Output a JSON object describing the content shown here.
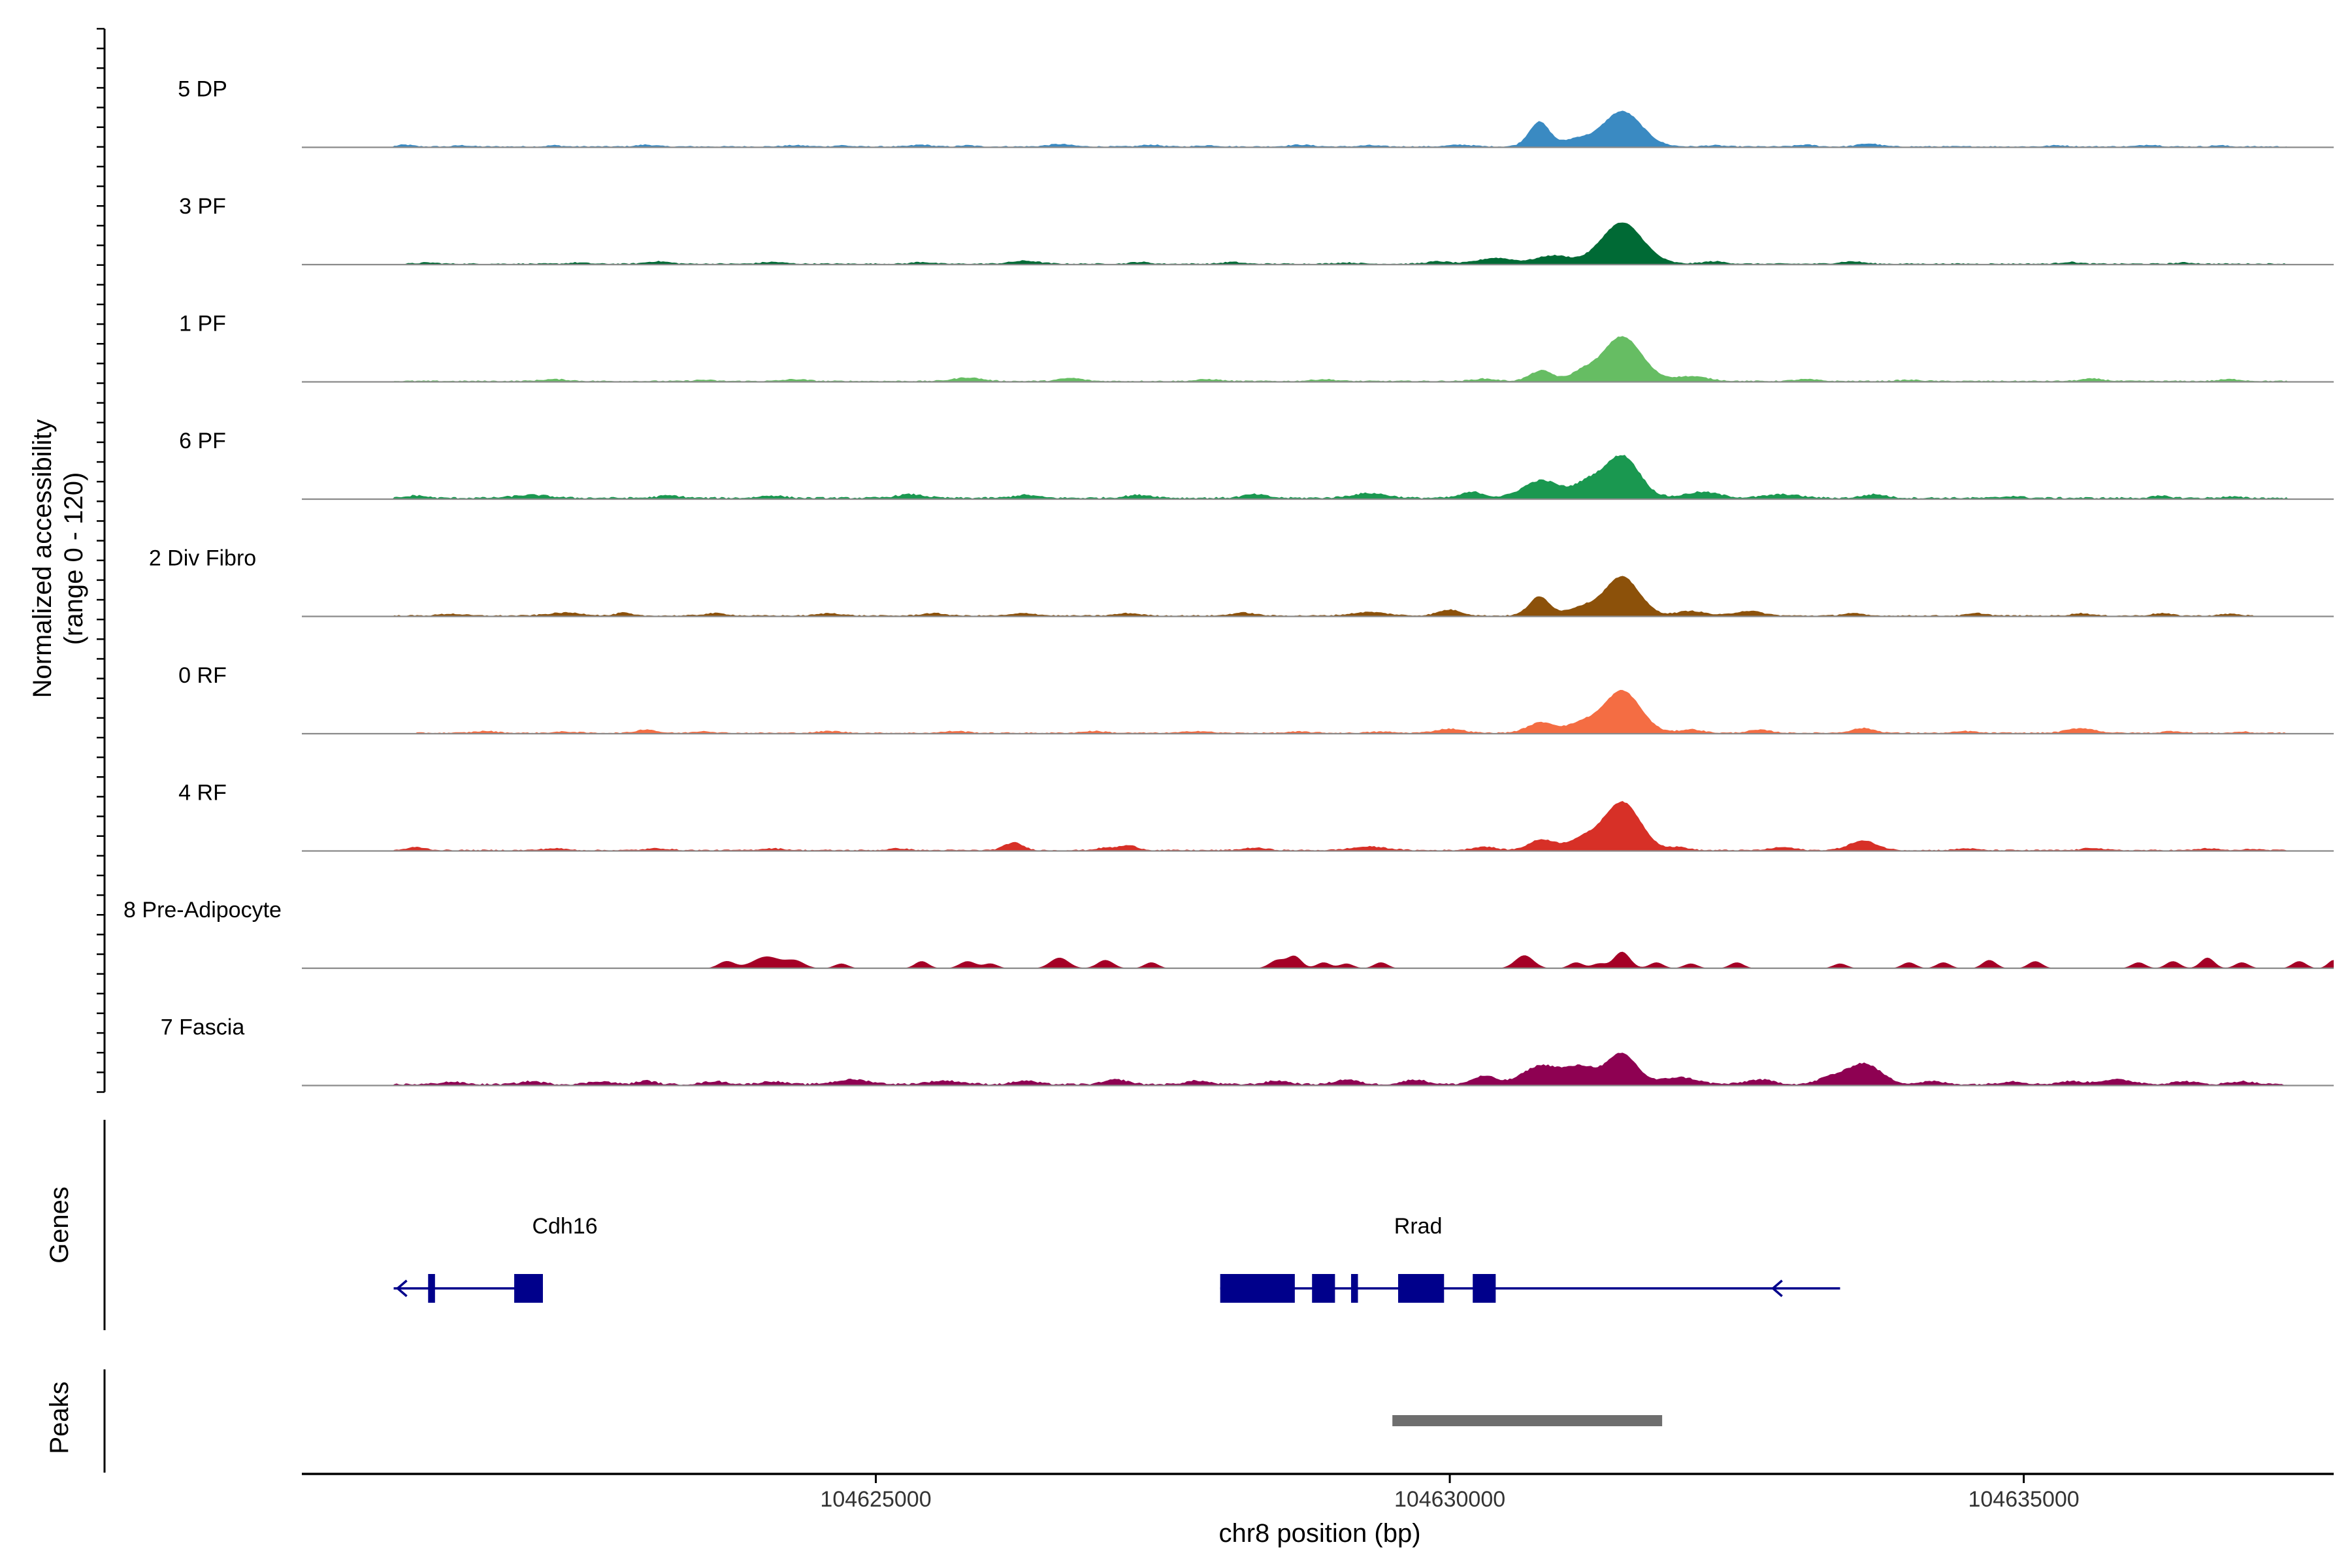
{
  "chart_data": {
    "type": "area",
    "chromosome": "chr8",
    "xlim": [
      104620000,
      104637700
    ],
    "x_ticks": [
      104625000,
      104630000,
      104635000
    ],
    "x_tick_labels": [
      "104625000",
      "104630000",
      "104635000"
    ],
    "xlabel": "chr8 position (bp)",
    "ylabel_line1": "Normalized accessibility",
    "ylabel_line2": "(range 0 - 120)",
    "ylim": [
      0,
      120
    ],
    "tracks": [
      {
        "name": "5 DP",
        "color": "#3a8ac2",
        "baseline": [
          [
            104620800,
            104637300,
            2
          ]
        ],
        "peaks": [
          [
            104620900,
            60,
            3
          ],
          [
            104621400,
            60,
            2
          ],
          [
            104622200,
            60,
            2
          ],
          [
            104623000,
            80,
            3
          ],
          [
            104624300,
            100,
            2
          ],
          [
            104624700,
            60,
            2
          ],
          [
            104625400,
            80,
            3
          ],
          [
            104625800,
            60,
            2
          ],
          [
            104626600,
            100,
            4
          ],
          [
            104627400,
            80,
            3
          ],
          [
            104627900,
            80,
            2
          ],
          [
            104628700,
            100,
            3
          ],
          [
            104629300,
            80,
            2
          ],
          [
            104630100,
            100,
            3
          ],
          [
            104630780,
            90,
            42
          ],
          [
            104631100,
            110,
            12
          ],
          [
            104631500,
            170,
            60
          ],
          [
            104632300,
            80,
            2
          ],
          [
            104633100,
            80,
            3
          ],
          [
            104633650,
            90,
            5
          ],
          [
            104635300,
            80,
            2
          ],
          [
            104636100,
            80,
            3
          ],
          [
            104636700,
            60,
            2
          ]
        ]
      },
      {
        "name": "3 PF",
        "color": "#006a35",
        "baseline": [
          [
            104620900,
            104637300,
            2
          ]
        ],
        "peaks": [
          [
            104621100,
            80,
            2
          ],
          [
            104622400,
            80,
            2
          ],
          [
            104623100,
            100,
            4
          ],
          [
            104624100,
            100,
            3
          ],
          [
            104625400,
            80,
            3
          ],
          [
            104626300,
            120,
            5
          ],
          [
            104627300,
            80,
            3
          ],
          [
            104628100,
            80,
            3
          ],
          [
            104629100,
            100,
            2
          ],
          [
            104629900,
            100,
            4
          ],
          [
            104630400,
            150,
            10
          ],
          [
            104630900,
            150,
            14
          ],
          [
            104631500,
            180,
            70
          ],
          [
            104632300,
            100,
            4
          ],
          [
            104633500,
            100,
            4
          ],
          [
            104635400,
            80,
            3
          ],
          [
            104636400,
            80,
            2
          ]
        ]
      },
      {
        "name": "1 PF",
        "color": "#66bd63",
        "baseline": [
          [
            104620800,
            104637300,
            2
          ]
        ],
        "peaks": [
          [
            104622200,
            120,
            3
          ],
          [
            104623500,
            80,
            2
          ],
          [
            104624300,
            100,
            3
          ],
          [
            104625800,
            120,
            6
          ],
          [
            104626700,
            100,
            5
          ],
          [
            104627900,
            100,
            3
          ],
          [
            104628900,
            100,
            3
          ],
          [
            104630300,
            100,
            4
          ],
          [
            104630800,
            100,
            18
          ],
          [
            104631150,
            100,
            14
          ],
          [
            104631500,
            170,
            76
          ],
          [
            104632100,
            150,
            8
          ],
          [
            104633100,
            100,
            3
          ],
          [
            104634000,
            100,
            2
          ],
          [
            104635600,
            100,
            4
          ],
          [
            104636800,
            100,
            3
          ]
        ]
      },
      {
        "name": "6 PF",
        "color": "#1a9850",
        "baseline": [
          [
            104620800,
            104637300,
            3
          ]
        ],
        "peaks": [
          [
            104621000,
            80,
            4
          ],
          [
            104622000,
            150,
            5
          ],
          [
            104623200,
            100,
            4
          ],
          [
            104624100,
            100,
            4
          ],
          [
            104625300,
            120,
            6
          ],
          [
            104626300,
            100,
            5
          ],
          [
            104627300,
            120,
            5
          ],
          [
            104628300,
            100,
            6
          ],
          [
            104629300,
            150,
            8
          ],
          [
            104630200,
            100,
            10
          ],
          [
            104630800,
            160,
            30
          ],
          [
            104631200,
            120,
            24
          ],
          [
            104631500,
            150,
            72
          ],
          [
            104632200,
            150,
            10
          ],
          [
            104632900,
            150,
            6
          ],
          [
            104633700,
            100,
            6
          ],
          [
            104634900,
            80,
            3
          ],
          [
            104636200,
            80,
            3
          ],
          [
            104636800,
            80,
            2
          ]
        ]
      },
      {
        "name": "2 Div Fibro",
        "color": "#8c510a",
        "baseline": [
          [
            104620800,
            104637000,
            2
          ]
        ],
        "peaks": [
          [
            104621300,
            100,
            3
          ],
          [
            104622300,
            150,
            5
          ],
          [
            104622800,
            60,
            5
          ],
          [
            104623600,
            100,
            4
          ],
          [
            104624600,
            100,
            4
          ],
          [
            104625500,
            100,
            4
          ],
          [
            104626300,
            100,
            4
          ],
          [
            104627200,
            100,
            4
          ],
          [
            104628200,
            100,
            5
          ],
          [
            104629300,
            150,
            6
          ],
          [
            104630000,
            100,
            10
          ],
          [
            104630780,
            90,
            32
          ],
          [
            104631150,
            130,
            14
          ],
          [
            104631500,
            150,
            66
          ],
          [
            104632100,
            120,
            8
          ],
          [
            104632600,
            120,
            8
          ],
          [
            104633500,
            80,
            4
          ],
          [
            104634600,
            80,
            4
          ],
          [
            104635500,
            80,
            4
          ],
          [
            104636200,
            80,
            4
          ],
          [
            104636800,
            80,
            3
          ]
        ]
      },
      {
        "name": "0 RF",
        "color": "#f46d43",
        "baseline": [
          [
            104621000,
            104637300,
            2
          ]
        ],
        "peaks": [
          [
            104621600,
            100,
            3
          ],
          [
            104622300,
            100,
            2
          ],
          [
            104623000,
            80,
            6
          ],
          [
            104623500,
            80,
            3
          ],
          [
            104624600,
            100,
            3
          ],
          [
            104625700,
            100,
            3
          ],
          [
            104626900,
            100,
            3
          ],
          [
            104627800,
            100,
            3
          ],
          [
            104628700,
            100,
            2
          ],
          [
            104629400,
            100,
            2
          ],
          [
            104630000,
            120,
            7
          ],
          [
            104630800,
            120,
            18
          ],
          [
            104631150,
            120,
            16
          ],
          [
            104631500,
            160,
            72
          ],
          [
            104632100,
            100,
            6
          ],
          [
            104632700,
            100,
            5
          ],
          [
            104633600,
            100,
            8
          ],
          [
            104634500,
            80,
            3
          ],
          [
            104635500,
            120,
            8
          ],
          [
            104636300,
            80,
            3
          ],
          [
            104636900,
            60,
            2
          ]
        ]
      },
      {
        "name": "4 RF",
        "color": "#d73027",
        "baseline": [
          [
            104620800,
            104637300,
            2
          ]
        ],
        "peaks": [
          [
            104621000,
            80,
            5
          ],
          [
            104622200,
            100,
            3
          ],
          [
            104623100,
            100,
            3
          ],
          [
            104624100,
            100,
            3
          ],
          [
            104625200,
            80,
            3
          ],
          [
            104626200,
            80,
            13
          ],
          [
            104627000,
            80,
            4
          ],
          [
            104627200,
            80,
            8
          ],
          [
            104628300,
            100,
            4
          ],
          [
            104629300,
            150,
            6
          ],
          [
            104630300,
            100,
            6
          ],
          [
            104630800,
            110,
            18
          ],
          [
            104631150,
            130,
            18
          ],
          [
            104631500,
            160,
            82
          ],
          [
            104632000,
            80,
            5
          ],
          [
            104632900,
            100,
            5
          ],
          [
            104633600,
            120,
            16
          ],
          [
            104634500,
            80,
            3
          ],
          [
            104635600,
            80,
            4
          ],
          [
            104636600,
            80,
            3
          ],
          [
            104637000,
            60,
            2
          ]
        ]
      },
      {
        "name": "8 Pre-Adipocyte",
        "color": "#a50026",
        "baseline": [],
        "peaks": [
          [
            104623700,
            70,
            12
          ],
          [
            104624050,
            120,
            20
          ],
          [
            104624300,
            80,
            12
          ],
          [
            104624700,
            60,
            8
          ],
          [
            104625400,
            60,
            12
          ],
          [
            104625800,
            70,
            12
          ],
          [
            104626000,
            60,
            8
          ],
          [
            104626600,
            80,
            18
          ],
          [
            104627000,
            70,
            14
          ],
          [
            104627400,
            60,
            10
          ],
          [
            104628500,
            70,
            14
          ],
          [
            104628650,
            60,
            20
          ],
          [
            104628900,
            60,
            10
          ],
          [
            104629100,
            60,
            8
          ],
          [
            104629400,
            60,
            10
          ],
          [
            104630650,
            80,
            22
          ],
          [
            104631100,
            60,
            10
          ],
          [
            104631300,
            60,
            8
          ],
          [
            104631500,
            70,
            28
          ],
          [
            104631800,
            60,
            10
          ],
          [
            104632100,
            60,
            8
          ],
          [
            104632500,
            60,
            10
          ],
          [
            104633400,
            60,
            8
          ],
          [
            104634000,
            60,
            10
          ],
          [
            104634300,
            60,
            10
          ],
          [
            104634700,
            60,
            14
          ],
          [
            104635100,
            60,
            12
          ],
          [
            104636000,
            60,
            10
          ],
          [
            104636300,
            60,
            12
          ],
          [
            104636600,
            60,
            18
          ],
          [
            104636900,
            60,
            10
          ],
          [
            104637400,
            60,
            12
          ],
          [
            104637700,
            50,
            14
          ]
        ]
      },
      {
        "name": "7 Fascia",
        "color": "#8e0152",
        "baseline": [
          [
            104620800,
            104637300,
            3
          ]
        ],
        "peaks": [
          [
            104621300,
            100,
            4
          ],
          [
            104622000,
            100,
            5
          ],
          [
            104622600,
            100,
            5
          ],
          [
            104623000,
            80,
            6
          ],
          [
            104623600,
            100,
            5
          ],
          [
            104624100,
            100,
            5
          ],
          [
            104624800,
            150,
            8
          ],
          [
            104625600,
            150,
            6
          ],
          [
            104626300,
            100,
            6
          ],
          [
            104627100,
            100,
            8
          ],
          [
            104627800,
            100,
            6
          ],
          [
            104628500,
            100,
            6
          ],
          [
            104629100,
            100,
            8
          ],
          [
            104629700,
            100,
            8
          ],
          [
            104630300,
            100,
            14
          ],
          [
            104630800,
            160,
            32
          ],
          [
            104631150,
            130,
            28
          ],
          [
            104631500,
            130,
            52
          ],
          [
            104632000,
            150,
            12
          ],
          [
            104632700,
            120,
            8
          ],
          [
            104633300,
            100,
            10
          ],
          [
            104633600,
            150,
            36
          ],
          [
            104634200,
            100,
            5
          ],
          [
            104634900,
            100,
            5
          ],
          [
            104635400,
            100,
            5
          ],
          [
            104635800,
            150,
            8
          ],
          [
            104636400,
            100,
            5
          ],
          [
            104636900,
            100,
            5
          ]
        ]
      }
    ],
    "genes_track": {
      "label": "Genes",
      "genes": [
        {
          "name": "Cdh16",
          "strand": "-",
          "start": 104620800,
          "end": 104622100,
          "exons": [
            [
              104621100,
              104621160
            ],
            [
              104621850,
              104622100
            ]
          ]
        },
        {
          "name": "Rrad",
          "strand": "-",
          "start": 104628000,
          "end": 104633400,
          "exons": [
            [
              104628000,
              104628650
            ],
            [
              104628800,
              104629000
            ],
            [
              104629140,
              104629200
            ],
            [
              104629550,
              104629950
            ],
            [
              104630200,
              104630400
            ]
          ]
        }
      ]
    },
    "peaks_track": {
      "label": "Peaks",
      "regions": [
        [
          104629500,
          104631850
        ]
      ]
    }
  }
}
